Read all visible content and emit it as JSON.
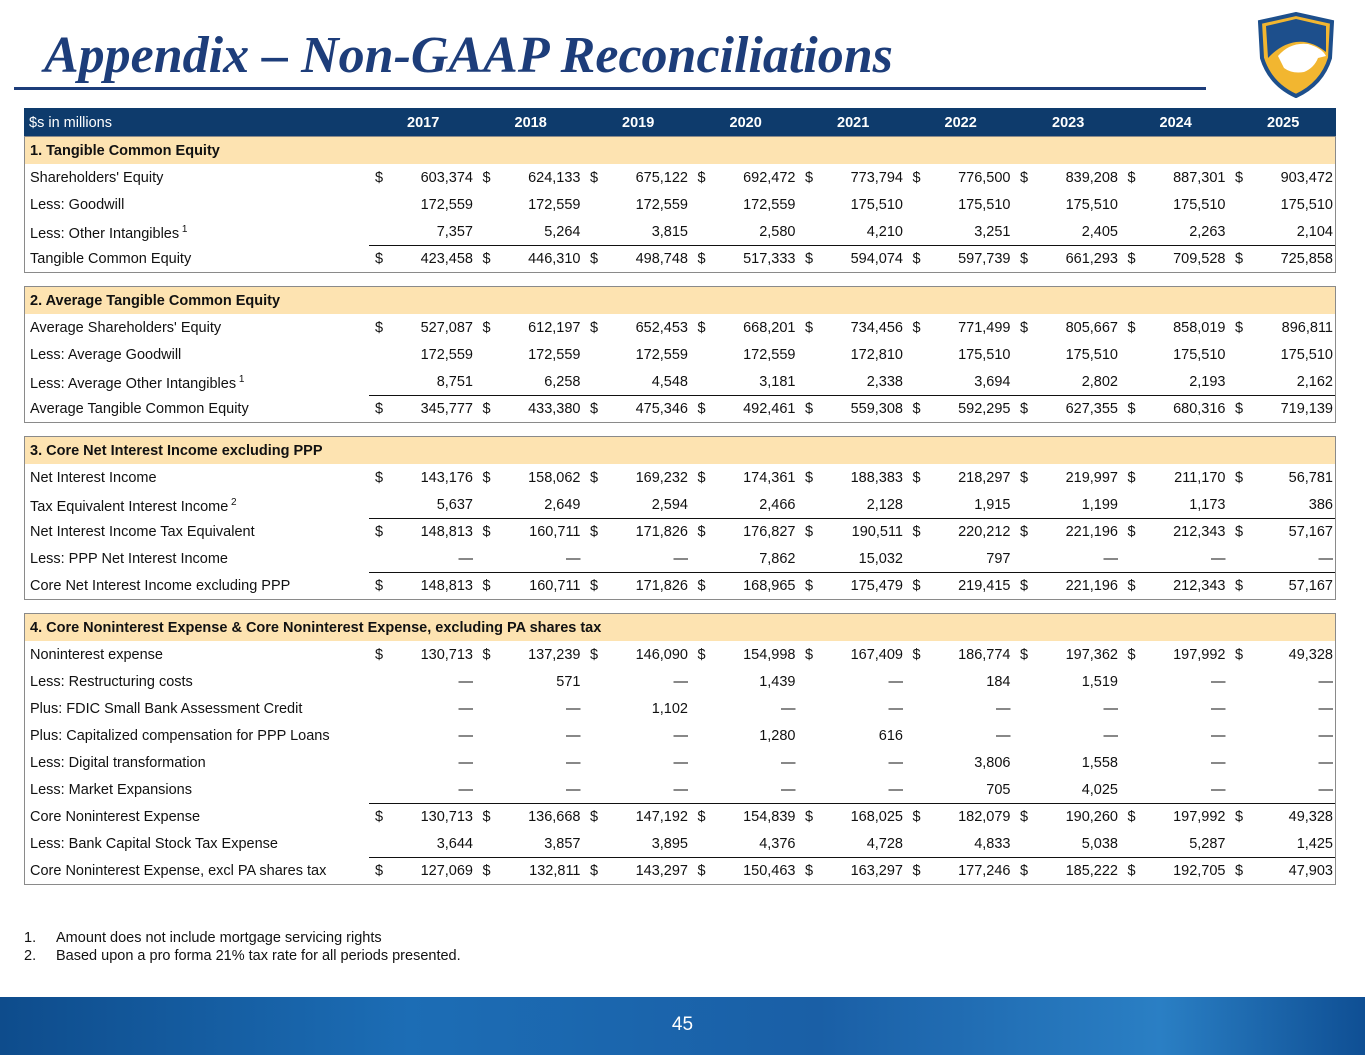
{
  "header": {
    "title": "Appendix – Non-GAAP Reconciliations"
  },
  "table": {
    "unit_label": "$s in millions",
    "currency_symbol": "$",
    "years": [
      "2017",
      "2018",
      "2019",
      "2020",
      "2021",
      "2022",
      "2023",
      "2024",
      "2025"
    ],
    "sections": [
      {
        "title": "1. Tangible Common Equity",
        "rows": [
          {
            "label": "Shareholders' Equity",
            "dollar": true,
            "values": [
              "603,374",
              "624,133",
              "675,122",
              "692,472",
              "773,794",
              "776,500",
              "839,208",
              "887,301",
              "903,472"
            ]
          },
          {
            "label": "Less: Goodwill",
            "values": [
              "172,559",
              "172,559",
              "172,559",
              "172,559",
              "175,510",
              "175,510",
              "175,510",
              "175,510",
              "175,510"
            ]
          },
          {
            "label": "Less: Other Intangibles",
            "note": "1",
            "values": [
              "7,357",
              "5,264",
              "3,815",
              "2,580",
              "4,210",
              "3,251",
              "2,405",
              "2,263",
              "2,104"
            ]
          },
          {
            "label": "Tangible Common Equity",
            "dollar": true,
            "values": [
              "423,458",
              "446,310",
              "498,748",
              "517,333",
              "594,074",
              "597,739",
              "661,293",
              "709,528",
              "725,858"
            ]
          }
        ]
      },
      {
        "title": "2. Average Tangible Common Equity",
        "rows": [
          {
            "label": "Average Shareholders' Equity",
            "dollar": true,
            "values": [
              "527,087",
              "612,197",
              "652,453",
              "668,201",
              "734,456",
              "771,499",
              "805,667",
              "858,019",
              "896,811"
            ]
          },
          {
            "label": "Less: Average Goodwill",
            "values": [
              "172,559",
              "172,559",
              "172,559",
              "172,559",
              "172,810",
              "175,510",
              "175,510",
              "175,510",
              "175,510"
            ]
          },
          {
            "label": "Less: Average Other Intangibles",
            "note": "1",
            "values": [
              "8,751",
              "6,258",
              "4,548",
              "3,181",
              "2,338",
              "3,694",
              "2,802",
              "2,193",
              "2,162"
            ]
          },
          {
            "label": "Average Tangible Common Equity",
            "dollar": true,
            "values": [
              "345,777",
              "433,380",
              "475,346",
              "492,461",
              "559,308",
              "592,295",
              "627,355",
              "680,316",
              "719,139"
            ]
          }
        ]
      },
      {
        "title": "3. Core Net Interest Income excluding PPP",
        "rows": [
          {
            "label": "Net Interest Income",
            "dollar": true,
            "values": [
              "143,176",
              "158,062",
              "169,232",
              "174,361",
              "188,383",
              "218,297",
              "219,997",
              "211,170",
              "56,781"
            ]
          },
          {
            "label": "Tax Equivalent Interest Income",
            "note": "2",
            "values": [
              "5,637",
              "2,649",
              "2,594",
              "2,466",
              "2,128",
              "1,915",
              "1,199",
              "1,173",
              "386"
            ]
          },
          {
            "label": "Net Interest Income Tax Equivalent",
            "dollar": true,
            "values": [
              "148,813",
              "160,711",
              "171,826",
              "176,827",
              "190,511",
              "220,212",
              "221,196",
              "212,343",
              "57,167"
            ]
          },
          {
            "label": "Less: PPP Net Interest Income",
            "values": [
              "—",
              "—",
              "—",
              "7,862",
              "15,032",
              "797",
              "—",
              "—",
              "—"
            ]
          },
          {
            "label": "Core Net Interest Income excluding PPP",
            "dollar": true,
            "values": [
              "148,813",
              "160,711",
              "171,826",
              "168,965",
              "175,479",
              "219,415",
              "221,196",
              "212,343",
              "57,167"
            ]
          }
        ]
      },
      {
        "title": "4. Core Noninterest Expense & Core Noninterest Expense, excluding PA shares tax",
        "rows": [
          {
            "label": "Noninterest expense",
            "dollar": true,
            "values": [
              "130,713",
              "137,239",
              "146,090",
              "154,998",
              "167,409",
              "186,774",
              "197,362",
              "197,992",
              "49,328"
            ]
          },
          {
            "label": "Less: Restructuring costs",
            "values": [
              "—",
              "571",
              "—",
              "1,439",
              "—",
              "184",
              "1,519",
              "—",
              "—"
            ]
          },
          {
            "label": "Plus: FDIC Small Bank Assessment Credit",
            "values": [
              "—",
              "—",
              "1,102",
              "—",
              "—",
              "—",
              "—",
              "—",
              "—"
            ]
          },
          {
            "label": "Plus: Capitalized compensation for PPP Loans",
            "values": [
              "—",
              "—",
              "—",
              "1,280",
              "616",
              "—",
              "—",
              "—",
              "—"
            ]
          },
          {
            "label": "Less: Digital transformation",
            "values": [
              "—",
              "—",
              "—",
              "—",
              "—",
              "3,806",
              "1,558",
              "—",
              "—"
            ]
          },
          {
            "label": "Less: Market Expansions",
            "values": [
              "—",
              "—",
              "—",
              "—",
              "—",
              "705",
              "4,025",
              "—",
              "—"
            ]
          },
          {
            "label": "Core Noninterest Expense",
            "dollar": true,
            "values": [
              "130,713",
              "136,668",
              "147,192",
              "154,839",
              "168,025",
              "182,079",
              "190,260",
              "197,992",
              "49,328"
            ]
          },
          {
            "label": "Less: Bank Capital Stock Tax Expense",
            "values": [
              "3,644",
              "3,857",
              "3,895",
              "4,376",
              "4,728",
              "4,833",
              "5,038",
              "5,287",
              "1,425"
            ]
          },
          {
            "label": "Core Noninterest Expense, excl PA shares tax",
            "dollar": true,
            "values": [
              "127,069",
              "132,811",
              "143,297",
              "150,463",
              "163,297",
              "177,246",
              "185,222",
              "192,705",
              "47,903"
            ]
          }
        ]
      }
    ]
  },
  "footnotes": [
    {
      "number": "1.",
      "text": "Amount does not include mortgage servicing rights"
    },
    {
      "number": "2.",
      "text": "Based upon a pro forma 21% tax rate for all periods presented."
    }
  ],
  "page_number": "45"
}
